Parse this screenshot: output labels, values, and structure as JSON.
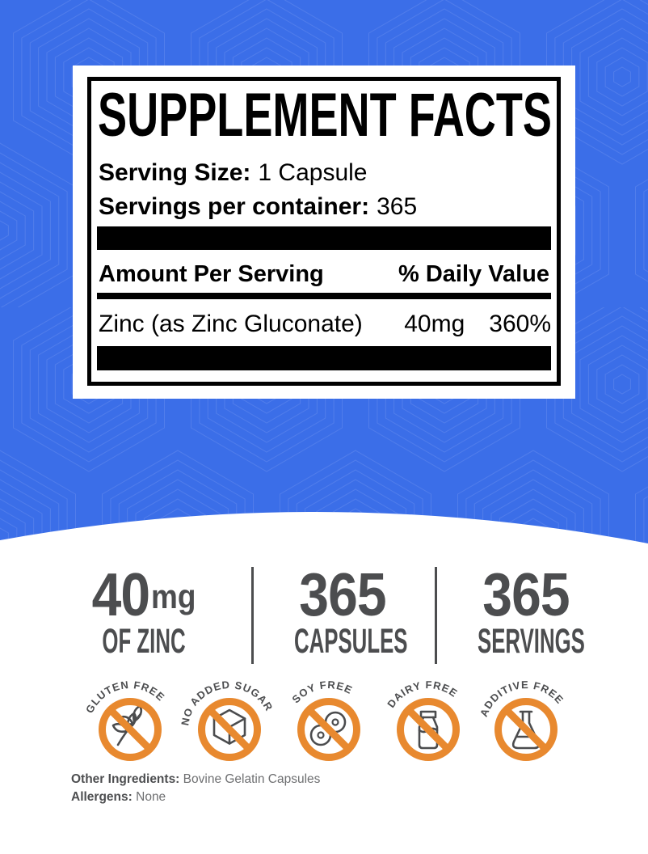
{
  "panel": {
    "title": "SUPPLEMENT FACTS",
    "serving_size_label": "Serving Size:",
    "serving_size_value": "1 Capsule",
    "servings_label": "Servings per container:",
    "servings_value": "365",
    "column_left": "Amount Per Serving",
    "column_right": "% Daily Value",
    "rows": [
      {
        "name": "Zinc (as Zinc Gluconate)",
        "amount": "40mg",
        "daily_value": "360%"
      }
    ]
  },
  "stats": [
    {
      "value": "40",
      "unit": "mg",
      "label": "OF ZINC"
    },
    {
      "value": "365",
      "unit": "",
      "label": "CAPSULES"
    },
    {
      "value": "365",
      "unit": "",
      "label": "SERVINGS"
    }
  ],
  "badges": [
    {
      "label": "GLUTEN FREE",
      "icon": "wheat-icon"
    },
    {
      "label": "NO ADDED SUGAR",
      "icon": "sugar-cube-icon"
    },
    {
      "label": "SOY FREE",
      "icon": "soybean-icon"
    },
    {
      "label": "DAIRY FREE",
      "icon": "milk-bottle-icon"
    },
    {
      "label": "ADDITIVE FREE",
      "icon": "flask-icon"
    }
  ],
  "footer": {
    "other_ingredients_label": "Other Ingredients:",
    "other_ingredients_value": "Bovine Gelatin Capsules",
    "allergens_label": "Allergens:",
    "allergens_value": "None"
  },
  "colors": {
    "background_blue": "#3b6ee8",
    "badge_orange": "#e8892f",
    "stat_gray": "#4c4d4f",
    "pattern_line": "#7396f0"
  }
}
